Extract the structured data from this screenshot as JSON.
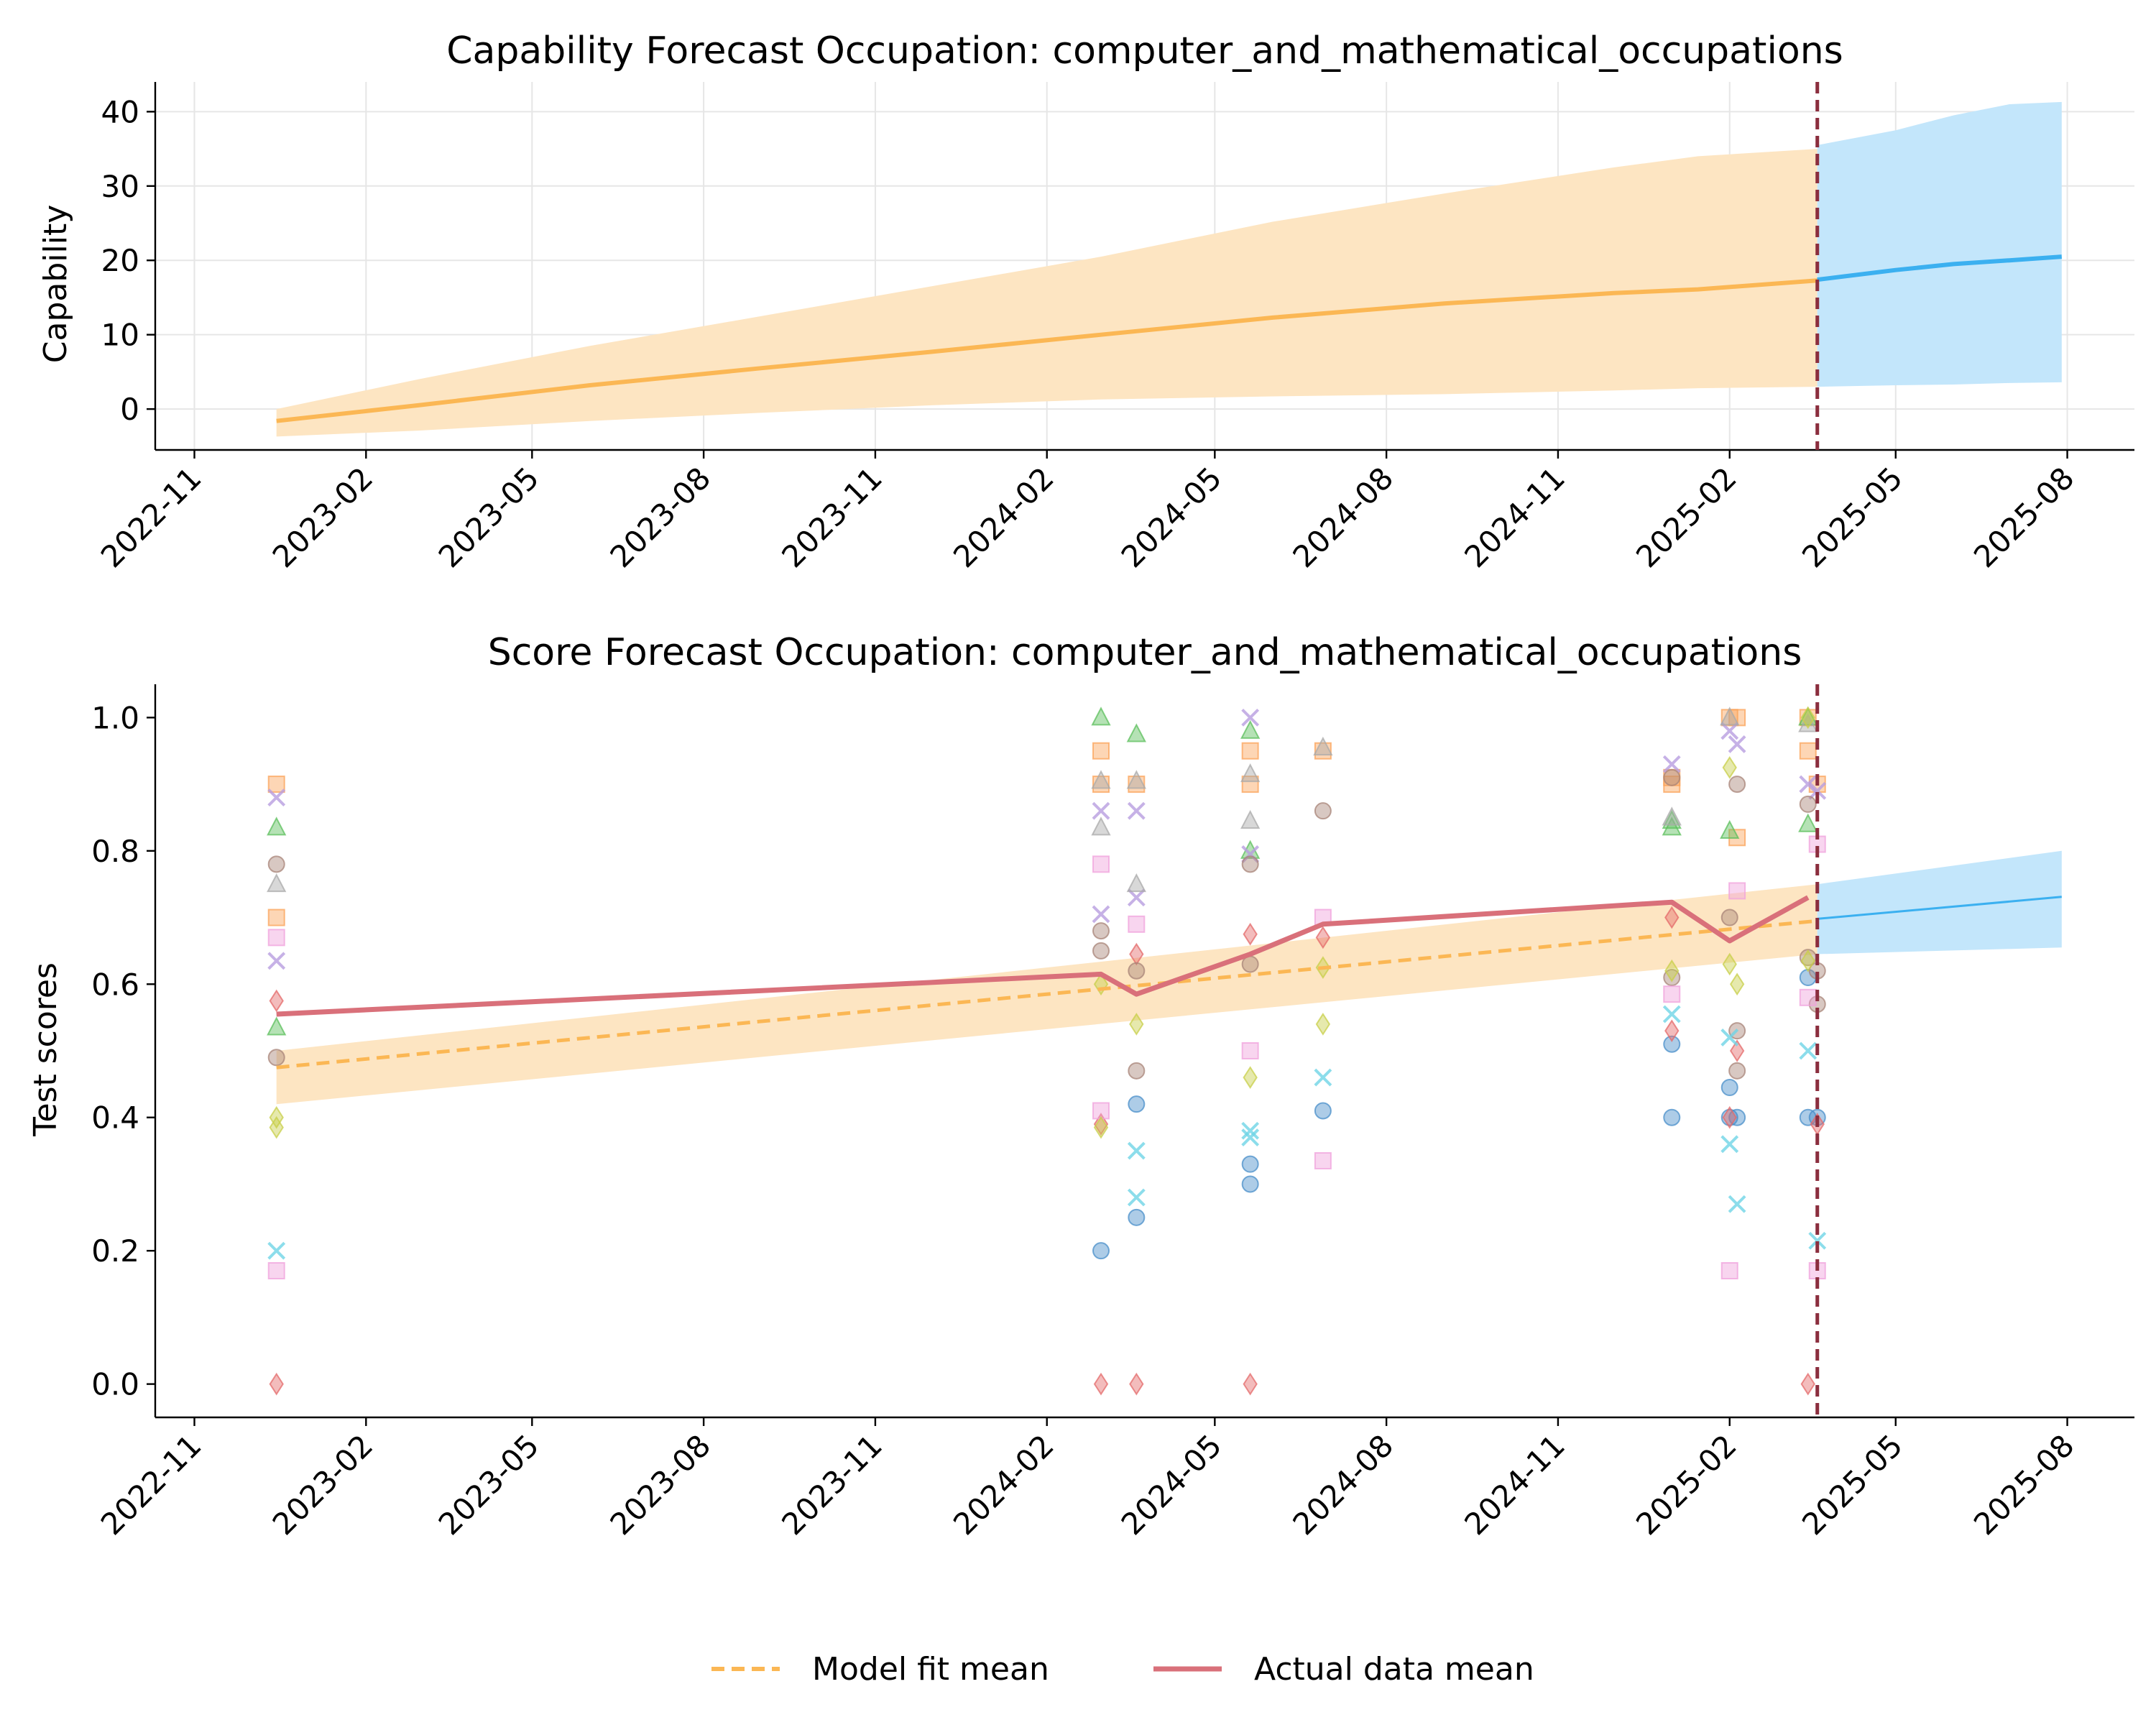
{
  "chart_data": [
    {
      "type": "area",
      "title": "Capability Forecast Occupation: computer_and_mathematical_occupations",
      "xlabel": "",
      "ylabel": "Capability",
      "x_ticks": [
        "2022-11",
        "2023-02",
        "2023-05",
        "2023-08",
        "2023-11",
        "2024-02",
        "2024-05",
        "2024-08",
        "2024-11",
        "2025-02",
        "2025-05",
        "2025-08"
      ],
      "y_ticks": [
        0,
        10,
        20,
        30,
        40
      ],
      "ylim": [
        -5.5,
        44
      ],
      "grid": true,
      "cutoff_date": "2025-03-20",
      "colors": {
        "fit": "#fbb754",
        "fit_band": "#fde5c2",
        "forecast": "#3bb0f0",
        "forecast_band": "#c3e6fb",
        "cutoff": "#8b2e3e"
      },
      "series": [
        {
          "role": "fit",
          "x": [
            "2022-12-15",
            "2023-03-01",
            "2023-06-01",
            "2023-09-01",
            "2023-12-01",
            "2024-03-01",
            "2024-06-01",
            "2024-09-01",
            "2024-12-01",
            "2025-01-15",
            "2025-03-20"
          ],
          "values": [
            -1.6,
            0.5,
            3.2,
            5.5,
            7.7,
            10.0,
            12.3,
            14.2,
            15.6,
            16.1,
            17.3
          ],
          "lower": [
            -3.7,
            -2.9,
            -1.6,
            -0.5,
            0.5,
            1.3,
            1.7,
            2.0,
            2.5,
            2.8,
            3.0
          ],
          "upper": [
            0.0,
            4.0,
            8.5,
            12.5,
            16.5,
            20.5,
            25.2,
            29.0,
            32.5,
            34.0,
            35.0
          ]
        },
        {
          "role": "forecast",
          "x": [
            "2025-03-20",
            "2025-05-01",
            "2025-06-01",
            "2025-07-01",
            "2025-07-29"
          ],
          "values": [
            17.4,
            18.7,
            19.5,
            20.0,
            20.5
          ],
          "lower": [
            3.0,
            3.2,
            3.3,
            3.5,
            3.6
          ],
          "upper": [
            35.5,
            37.5,
            39.5,
            41.0,
            41.3
          ]
        }
      ]
    },
    {
      "type": "scatter",
      "title": "Score Forecast Occupation: computer_and_mathematical_occupations",
      "xlabel": "",
      "ylabel": "Test scores",
      "x_ticks": [
        "2022-11",
        "2023-02",
        "2023-05",
        "2023-08",
        "2023-11",
        "2024-02",
        "2024-05",
        "2024-08",
        "2024-11",
        "2025-02",
        "2025-05",
        "2025-08"
      ],
      "y_ticks": [
        0.0,
        0.2,
        0.4,
        0.6,
        0.8,
        1.0
      ],
      "ylim": [
        -0.05,
        1.05
      ],
      "grid": false,
      "cutoff_date": "2025-03-20",
      "legend": {
        "placement": "bottom-center",
        "entries": [
          "Model fit mean",
          "Actual data mean"
        ]
      },
      "colors": {
        "fit": "#fbb754",
        "fit_band": "#fde5c2",
        "actual": "#d9707a",
        "forecast": "#3bb0f0",
        "forecast_band": "#c3e6fb",
        "cutoff": "#8b2e3e"
      },
      "fit_mean": {
        "x": [
          "2022-12-15",
          "2025-03-20"
        ],
        "values": [
          0.475,
          0.695
        ]
      },
      "fit_band": {
        "x": [
          "2022-12-15",
          "2025-03-20"
        ],
        "lower": [
          0.42,
          0.645
        ],
        "upper": [
          0.5,
          0.75
        ]
      },
      "actual_mean": {
        "x": [
          "2022-12-15",
          "2024-03-01",
          "2024-03-20",
          "2024-05-20",
          "2024-06-28",
          "2025-01-01",
          "2025-02-01",
          "2025-03-15"
        ],
        "values": [
          0.555,
          0.615,
          0.585,
          0.645,
          0.69,
          0.723,
          0.665,
          0.73
        ]
      },
      "forecast_mean": {
        "x": [
          "2025-03-20",
          "2025-07-29"
        ],
        "values": [
          0.698,
          0.731
        ]
      },
      "forecast_band": {
        "x": [
          "2025-03-20",
          "2025-07-29"
        ],
        "lower": [
          0.645,
          0.655
        ],
        "upper": [
          0.75,
          0.8
        ]
      },
      "model_series": [
        {
          "marker": "circle",
          "color": "#4a8fca",
          "points": [
            [
              "2024-03-01",
              0.2
            ],
            [
              "2024-03-20",
              0.42
            ],
            [
              "2024-03-20",
              0.25
            ],
            [
              "2024-05-20",
              0.33
            ],
            [
              "2024-05-20",
              0.3
            ],
            [
              "2024-06-28",
              0.41
            ],
            [
              "2025-01-01",
              0.4
            ],
            [
              "2025-01-01",
              0.51
            ],
            [
              "2025-02-01",
              0.445
            ],
            [
              "2025-02-01",
              0.4
            ],
            [
              "2025-02-05",
              0.4
            ],
            [
              "2025-03-15",
              0.4
            ],
            [
              "2025-03-15",
              0.61
            ],
            [
              "2025-03-20",
              0.4
            ]
          ]
        },
        {
          "marker": "square",
          "color": "#fba35a",
          "points": [
            [
              "2022-12-15",
              0.9
            ],
            [
              "2022-12-15",
              0.7
            ],
            [
              "2024-03-01",
              0.95
            ],
            [
              "2024-03-01",
              0.9
            ],
            [
              "2024-03-20",
              0.9
            ],
            [
              "2024-05-20",
              0.95
            ],
            [
              "2024-05-20",
              0.9
            ],
            [
              "2024-06-28",
              0.95
            ],
            [
              "2025-01-01",
              0.9
            ],
            [
              "2025-01-01",
              0.91
            ],
            [
              "2025-02-01",
              1.0
            ],
            [
              "2025-02-05",
              1.0
            ],
            [
              "2025-02-05",
              0.82
            ],
            [
              "2025-03-15",
              1.0
            ],
            [
              "2025-03-15",
              0.95
            ],
            [
              "2025-03-20",
              0.9
            ]
          ]
        },
        {
          "marker": "triangle",
          "color": "#5cbf5c",
          "points": [
            [
              "2022-12-15",
              0.835
            ],
            [
              "2022-12-15",
              0.535
            ],
            [
              "2024-03-01",
              1.0
            ],
            [
              "2024-03-20",
              0.975
            ],
            [
              "2024-05-20",
              0.98
            ],
            [
              "2024-05-20",
              0.8
            ],
            [
              "2025-01-01",
              0.835
            ],
            [
              "2025-01-01",
              0.845
            ],
            [
              "2025-02-01",
              0.83
            ],
            [
              "2025-03-15",
              0.84
            ],
            [
              "2025-03-15",
              1.0
            ]
          ]
        },
        {
          "marker": "diamond",
          "color": "#e46a6a",
          "points": [
            [
              "2022-12-15",
              0.575
            ],
            [
              "2022-12-15",
              0.0
            ],
            [
              "2024-03-01",
              0.39
            ],
            [
              "2024-03-01",
              0.0
            ],
            [
              "2024-03-20",
              0.645
            ],
            [
              "2024-03-20",
              0.0
            ],
            [
              "2024-05-20",
              0.675
            ],
            [
              "2024-05-20",
              0.0
            ],
            [
              "2024-06-28",
              0.67
            ],
            [
              "2025-01-01",
              0.7
            ],
            [
              "2025-01-01",
              0.53
            ],
            [
              "2025-02-05",
              0.5
            ],
            [
              "2025-02-01",
              0.4
            ],
            [
              "2025-03-15",
              0.0
            ],
            [
              "2025-03-20",
              0.39
            ]
          ]
        },
        {
          "marker": "x",
          "color": "#b89ee0",
          "points": [
            [
              "2022-12-15",
              0.88
            ],
            [
              "2022-12-15",
              0.635
            ],
            [
              "2024-03-01",
              0.86
            ],
            [
              "2024-03-01",
              0.705
            ],
            [
              "2024-03-20",
              0.86
            ],
            [
              "2024-03-20",
              0.73
            ],
            [
              "2024-05-20",
              1.0
            ],
            [
              "2024-05-20",
              0.795
            ],
            [
              "2025-01-01",
              0.93
            ],
            [
              "2025-02-01",
              0.98
            ],
            [
              "2025-02-05",
              0.96
            ],
            [
              "2025-03-15",
              0.9
            ],
            [
              "2025-03-20",
              0.89
            ]
          ]
        },
        {
          "marker": "circle",
          "color": "#a88478",
          "points": [
            [
              "2022-12-15",
              0.78
            ],
            [
              "2022-12-15",
              0.49
            ],
            [
              "2024-03-01",
              0.68
            ],
            [
              "2024-03-01",
              0.65
            ],
            [
              "2024-03-20",
              0.62
            ],
            [
              "2024-03-20",
              0.47
            ],
            [
              "2024-05-20",
              0.78
            ],
            [
              "2024-05-20",
              0.63
            ],
            [
              "2024-06-28",
              0.86
            ],
            [
              "2025-01-01",
              0.91
            ],
            [
              "2025-01-01",
              0.61
            ],
            [
              "2025-02-01",
              0.7
            ],
            [
              "2025-02-05",
              0.9
            ],
            [
              "2025-02-05",
              0.53
            ],
            [
              "2025-02-05",
              0.47
            ],
            [
              "2025-03-15",
              0.87
            ],
            [
              "2025-03-15",
              0.64
            ],
            [
              "2025-03-20",
              0.62
            ],
            [
              "2025-03-20",
              0.57
            ]
          ]
        },
        {
          "marker": "square",
          "color": "#f0a2dc",
          "points": [
            [
              "2022-12-15",
              0.67
            ],
            [
              "2022-12-15",
              0.17
            ],
            [
              "2024-03-01",
              0.78
            ],
            [
              "2024-03-01",
              0.41
            ],
            [
              "2024-03-20",
              0.69
            ],
            [
              "2024-05-20",
              0.5
            ],
            [
              "2024-06-28",
              0.7
            ],
            [
              "2024-06-28",
              0.335
            ],
            [
              "2025-01-01",
              0.585
            ],
            [
              "2025-02-01",
              0.17
            ],
            [
              "2025-02-05",
              0.74
            ],
            [
              "2025-03-15",
              0.58
            ],
            [
              "2025-03-20",
              0.81
            ],
            [
              "2025-03-20",
              0.17
            ]
          ]
        },
        {
          "marker": "triangle",
          "color": "#a9a9a9",
          "points": [
            [
              "2022-12-15",
              0.75
            ],
            [
              "2024-03-01",
              0.835
            ],
            [
              "2024-03-01",
              0.905
            ],
            [
              "2024-03-20",
              0.75
            ],
            [
              "2024-03-20",
              0.905
            ],
            [
              "2024-05-20",
              0.915
            ],
            [
              "2024-05-20",
              0.845
            ],
            [
              "2024-06-28",
              0.955
            ],
            [
              "2025-01-01",
              0.85
            ],
            [
              "2025-02-01",
              1.0
            ],
            [
              "2025-03-15",
              0.99
            ]
          ]
        },
        {
          "marker": "diamond",
          "color": "#c8cf4a",
          "points": [
            [
              "2022-12-15",
              0.4
            ],
            [
              "2022-12-15",
              0.385
            ],
            [
              "2024-03-01",
              0.6
            ],
            [
              "2024-03-01",
              0.385
            ],
            [
              "2024-03-20",
              0.54
            ],
            [
              "2024-05-20",
              0.46
            ],
            [
              "2024-06-28",
              0.625
            ],
            [
              "2024-06-28",
              0.54
            ],
            [
              "2025-01-01",
              0.62
            ],
            [
              "2025-02-01",
              0.925
            ],
            [
              "2025-02-01",
              0.63
            ],
            [
              "2025-02-05",
              0.6
            ],
            [
              "2025-03-15",
              1.0
            ],
            [
              "2025-03-15",
              0.635
            ]
          ]
        },
        {
          "marker": "x",
          "color": "#6fd4e6",
          "points": [
            [
              "2022-12-15",
              0.2
            ],
            [
              "2024-03-20",
              0.35
            ],
            [
              "2024-03-20",
              0.28
            ],
            [
              "2024-05-20",
              0.38
            ],
            [
              "2024-05-20",
              0.37
            ],
            [
              "2024-06-28",
              0.46
            ],
            [
              "2025-01-01",
              0.555
            ],
            [
              "2025-02-01",
              0.52
            ],
            [
              "2025-02-01",
              0.36
            ],
            [
              "2025-02-05",
              0.27
            ],
            [
              "2025-03-15",
              0.5
            ],
            [
              "2025-03-20",
              0.215
            ]
          ]
        }
      ]
    }
  ]
}
